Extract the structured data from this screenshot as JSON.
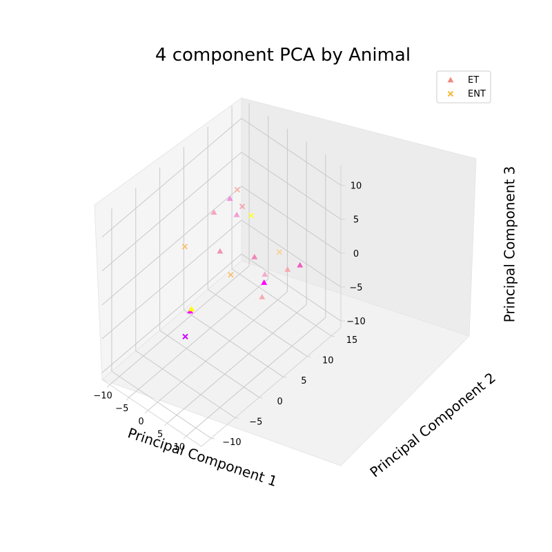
{
  "chart_data": {
    "type": "scatter",
    "projection": "3d",
    "title": "4 component PCA by Animal",
    "xlabel": "Principal Component 1",
    "ylabel": "Principal Component 2",
    "zlabel": "Principal Component 3",
    "xlim": [
      -12,
      14
    ],
    "ylim": [
      -12,
      17
    ],
    "zlim": [
      -11,
      13
    ],
    "xticks": [
      -10,
      -5,
      0,
      5,
      10
    ],
    "yticks": [
      -10,
      -5,
      0,
      5,
      10,
      15
    ],
    "zticks": [
      -10,
      -5,
      0,
      5,
      10
    ],
    "xtick_labels": [
      "−10",
      "−5",
      "0",
      "5",
      "10"
    ],
    "ytick_labels": [
      "−10",
      "−5",
      "0",
      "5",
      "10",
      "15"
    ],
    "ztick_labels": [
      "−10",
      "−5",
      "0",
      "5",
      "10"
    ],
    "legend_position": "top-right",
    "series": [
      {
        "name": "ET",
        "marker": "triangle",
        "legend_color": "#f28a7e",
        "points": [
          {
            "x": -9.8,
            "y": 9.5,
            "z": 1.5,
            "color": "#f59bb8",
            "alpha": 0.9
          },
          {
            "x": -7.5,
            "y": 11,
            "z": 3.5,
            "color": "#ee82d8",
            "alpha": 0.85
          },
          {
            "x": -7.2,
            "y": 12.2,
            "z": 0.5,
            "color": "#ee90cc",
            "alpha": 0.85
          },
          {
            "x": -6.3,
            "y": 8,
            "z": -2.0,
            "color": "#f08aae",
            "alpha": 0.9
          },
          {
            "x": 3.2,
            "y": 14.5,
            "z": -5.0,
            "color": "#f7a0a8",
            "alpha": 0.85
          },
          {
            "x": 4.6,
            "y": 6.5,
            "z": 2.2,
            "color": "#f080b8",
            "alpha": 0.95
          },
          {
            "x": 4.8,
            "y": 8.5,
            "z": -1.5,
            "color": "#f5a0c8",
            "alpha": 0.85
          },
          {
            "x": 5.2,
            "y": 15.5,
            "z": -4.2,
            "color": "#ee60c0",
            "alpha": 1.0
          },
          {
            "x": 9.0,
            "y": 5.0,
            "z": 1.0,
            "color": "#ff00ff",
            "alpha": 1.0
          },
          {
            "x": 13.5,
            "y": 1.0,
            "z": 3.0,
            "color": "#f7a0a8",
            "alpha": 0.85
          },
          {
            "x": 6.0,
            "y": -8.0,
            "z": 3.5,
            "color": "#ff00ff",
            "alpha": 1.0
          },
          {
            "x": 7.0,
            "y": -8.5,
            "z": 4.5,
            "color": "#ffff00",
            "alpha": 1.0
          }
        ]
      },
      {
        "name": "ENT",
        "marker": "x",
        "legend_color": "#f6b83c",
        "points": [
          {
            "x": -6.2,
            "y": 11.5,
            "z": 5.0,
            "color": "#f5b0a8",
            "alpha": 0.9
          },
          {
            "x": -5.5,
            "y": 12.0,
            "z": 2.5,
            "color": "#f4a0b0",
            "alpha": 0.9
          },
          {
            "x": -3.8,
            "y": 12.5,
            "z": 1.5,
            "color": "#ffff40",
            "alpha": 0.9
          },
          {
            "x": -10.5,
            "y": 4.0,
            "z": -0.5,
            "color": "#f8c070",
            "alpha": 0.9
          },
          {
            "x": 2.8,
            "y": 3.0,
            "z": 1.0,
            "color": "#f8c070",
            "alpha": 0.9
          },
          {
            "x": 13.0,
            "y": 5.0,
            "z": 7.0,
            "color": "#f8d090",
            "alpha": 0.85
          },
          {
            "x": 8.5,
            "y": -11.0,
            "z": 2.5,
            "color": "#cc00ff",
            "alpha": 1.0
          }
        ]
      }
    ]
  }
}
